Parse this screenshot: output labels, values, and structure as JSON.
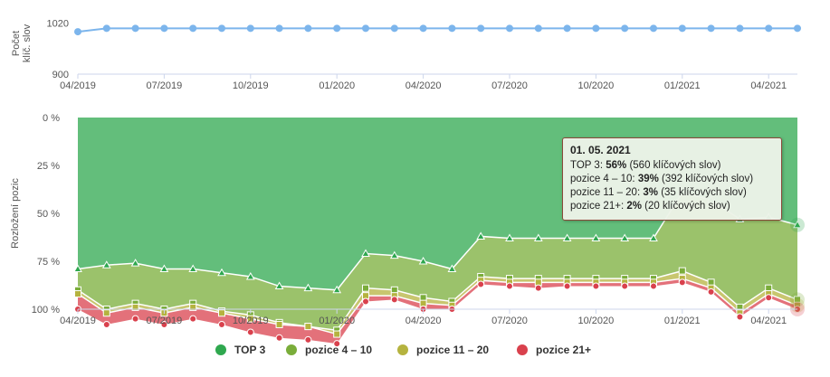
{
  "chart_data": [
    {
      "type": "line",
      "ylabel": "Počet klíč. slov",
      "yticks": [
        900,
        1020
      ],
      "ylim": [
        900,
        1045
      ],
      "color": "#7cb5ec",
      "x": [
        "2019-04",
        "2019-05",
        "2019-06",
        "2019-07",
        "2019-08",
        "2019-09",
        "2019-10",
        "2019-11",
        "2019-12",
        "2020-01",
        "2020-02",
        "2020-03",
        "2020-04",
        "2020-05",
        "2020-06",
        "2020-07",
        "2020-08",
        "2020-09",
        "2020-10",
        "2020-11",
        "2020-12",
        "2021-01",
        "2021-02",
        "2021-03",
        "2021-04",
        "2021-05"
      ],
      "values": [
        1000,
        1008,
        1008,
        1008,
        1008,
        1008,
        1008,
        1008,
        1008,
        1008,
        1008,
        1008,
        1008,
        1008,
        1008,
        1008,
        1008,
        1008,
        1008,
        1008,
        1008,
        1008,
        1008,
        1008,
        1008,
        1008
      ],
      "xticks": [
        "04/2019",
        "07/2019",
        "10/2019",
        "01/2020",
        "04/2020",
        "07/2020",
        "10/2020",
        "01/2021",
        "04/2021"
      ]
    },
    {
      "type": "area",
      "stacking": "percent",
      "ylabel": "Rozložení pozic",
      "yticks": [
        "0 %",
        "25 %",
        "50 %",
        "75 %",
        "100 %"
      ],
      "x": [
        "2019-04",
        "2019-05",
        "2019-06",
        "2019-07",
        "2019-08",
        "2019-09",
        "2019-10",
        "2019-11",
        "2019-12",
        "2020-01",
        "2020-02",
        "2020-03",
        "2020-04",
        "2020-05",
        "2020-06",
        "2020-07",
        "2020-08",
        "2020-09",
        "2020-10",
        "2020-11",
        "2020-12",
        "2021-01",
        "2021-02",
        "2021-03",
        "2021-04",
        "2021-05"
      ],
      "xticks": [
        "04/2019",
        "07/2019",
        "10/2019",
        "01/2020",
        "04/2020",
        "07/2020",
        "10/2020",
        "01/2021",
        "04/2021"
      ],
      "series": [
        {
          "name": "TOP 3",
          "color": "#2fa84f",
          "marker": "triangle",
          "values": [
            79,
            77,
            76,
            79,
            79,
            81,
            83,
            88,
            89,
            90,
            71,
            72,
            75,
            79,
            62,
            63,
            63,
            63,
            63,
            63,
            63,
            39,
            43,
            53,
            52,
            56
          ]
        },
        {
          "name": "pozice 4 – 10",
          "color": "#7aad3a",
          "marker": "square",
          "values": [
            11,
            23,
            21,
            21,
            18,
            20,
            20,
            19,
            20,
            21,
            18,
            18,
            19,
            17,
            21,
            21,
            21,
            21,
            21,
            21,
            21,
            41,
            43,
            46,
            37,
            39
          ]
        },
        {
          "name": "pozice 11 – 20",
          "color": "#b5b33f",
          "marker": "square",
          "values": [
            2,
            2,
            2,
            2,
            2,
            1,
            2,
            1,
            0,
            2,
            4,
            3,
            3,
            2,
            2,
            2,
            2,
            2,
            2,
            2,
            2,
            4,
            3,
            3,
            3,
            3
          ]
        },
        {
          "name": "pozice 21+",
          "color": "#d9414d",
          "marker": "circle",
          "values": [
            8,
            6,
            6,
            6,
            6,
            6,
            7,
            7,
            7,
            5,
            3,
            2,
            3,
            2,
            2,
            2,
            3,
            2,
            2,
            2,
            2,
            2,
            2,
            2,
            2,
            2
          ]
        }
      ],
      "tooltip": {
        "date": "01. 05. 2021",
        "rows": [
          {
            "label": "TOP 3:",
            "pct": "56%",
            "count": "(560 klíčových slov)"
          },
          {
            "label": "pozice 4 – 10:",
            "pct": "39%",
            "count": "(392 klíčových slov)"
          },
          {
            "label": "pozice 11 – 20:",
            "pct": "3%",
            "count": "(35 klíčových slov)"
          },
          {
            "label": "pozice 21+:",
            "pct": "2%",
            "count": "(20 klíčových slov)"
          }
        ]
      },
      "legend": {
        "placement": "bottom-center",
        "items": [
          {
            "label": "TOP 3",
            "color": "#2fa84f"
          },
          {
            "label": "pozice 4 – 10",
            "color": "#7aad3a"
          },
          {
            "label": "pozice 11 – 20",
            "color": "#b5b33f"
          },
          {
            "label": "pozice 21+",
            "color": "#d9414d"
          }
        ]
      }
    }
  ]
}
